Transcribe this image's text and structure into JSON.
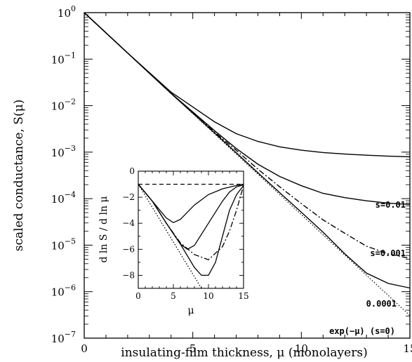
{
  "chart_data": [
    {
      "type": "line",
      "title": "",
      "xlabel": "insulating-film thickness, μ (monolayers)",
      "ylabel": "scaled conductance, S(μ)",
      "xlim": [
        0,
        15
      ],
      "ylim": [
        1e-07,
        1
      ],
      "yscale": "log",
      "grid": false,
      "x_ticks": [
        "0",
        "5",
        "10",
        "15"
      ],
      "y_ticks": [
        {
          "base": "10",
          "exp": "0"
        },
        {
          "base": "10",
          "exp": "-1"
        },
        {
          "base": "10",
          "exp": "-2"
        },
        {
          "base": "10",
          "exp": "-3"
        },
        {
          "base": "10",
          "exp": "-4"
        },
        {
          "base": "10",
          "exp": "-5"
        },
        {
          "base": "10",
          "exp": "-6"
        },
        {
          "base": "10",
          "exp": "-7"
        }
      ],
      "series": [
        {
          "name": "s=0.01",
          "style": "solid",
          "x": [
            0,
            2,
            4,
            6,
            7,
            8,
            9,
            10,
            11,
            12,
            13,
            14,
            15
          ],
          "y": [
            1,
            0.135,
            0.0195,
            0.0045,
            0.0025,
            0.0017,
            0.0013,
            0.0011,
            0.00098,
            0.00091,
            0.00086,
            0.00082,
            0.00079
          ]
        },
        {
          "name": "s=0.001",
          "style": "solid",
          "x": [
            0,
            2,
            4,
            6,
            7,
            8,
            9,
            10,
            11,
            12,
            13,
            14,
            15
          ],
          "y": [
            1,
            0.135,
            0.0185,
            0.0029,
            0.0012,
            0.00055,
            0.0003,
            0.00019,
            0.00013,
            0.000105,
            9e-05,
            8e-05,
            7.5e-05
          ]
        },
        {
          "series_style_note": "dash-dot curve unlabeled",
          "style": "dashdot",
          "x": [
            0,
            2,
            4,
            6,
            7,
            8,
            9,
            10,
            11,
            12,
            13,
            14,
            15
          ],
          "y": [
            1,
            0.135,
            0.0185,
            0.0027,
            0.0011,
            0.00043,
            0.00018,
            7.8e-05,
            3.5e-05,
            1.8e-05,
            9.5e-06,
            6.5e-06,
            5.2e-06
          ]
        },
        {
          "name": "0.0001",
          "style": "solid",
          "x": [
            0,
            2,
            4,
            6,
            7,
            8,
            9,
            10,
            11,
            12,
            13,
            14,
            15
          ],
          "y": [
            1,
            0.135,
            0.0183,
            0.0026,
            0.00097,
            0.00036,
            0.000135,
            5.1e-05,
            1.9e-05,
            6.5e-06,
            2.5e-06,
            1.5e-06,
            1.2e-06
          ]
        },
        {
          "name": "exp(−μ) (s=0)",
          "style": "dotted",
          "x": [
            0,
            5,
            10,
            15
          ],
          "y": [
            1,
            0.006738,
            4.54e-05,
            3.06e-07
          ]
        }
      ]
    },
    {
      "type": "line",
      "title": "",
      "xlabel": "μ",
      "ylabel": "d ln S / d ln μ",
      "xlim": [
        0,
        15
      ],
      "ylim": [
        -9,
        0
      ],
      "grid": false,
      "x_ticks": [
        "0",
        "5",
        "10",
        "15"
      ],
      "y_ticks": [
        "0",
        "−2",
        "−4",
        "−6",
        "−8"
      ],
      "series": [
        {
          "style": "dashed",
          "x": [
            0,
            15
          ],
          "y": [
            -1,
            -1
          ]
        },
        {
          "style": "solid",
          "x": [
            0,
            2,
            4,
            5,
            6,
            8,
            10,
            12,
            14,
            15
          ],
          "y": [
            -1,
            -2.3,
            -3.6,
            -3.95,
            -3.7,
            -2.6,
            -1.8,
            -1.35,
            -1.1,
            -1.05
          ]
        },
        {
          "style": "solid",
          "x": [
            0,
            2,
            4,
            6,
            7,
            8,
            10,
            12,
            13,
            14,
            15
          ],
          "y": [
            -1,
            -2.3,
            -4.0,
            -5.6,
            -6.0,
            -5.7,
            -4.0,
            -2.3,
            -1.6,
            -1.2,
            -1.05
          ]
        },
        {
          "style": "dashdot",
          "x": [
            0,
            2,
            4,
            6,
            8,
            10,
            12,
            13,
            14,
            15
          ],
          "y": [
            -1,
            -2.3,
            -4.0,
            -5.5,
            -6.4,
            -6.8,
            -5.8,
            -4.6,
            -3.0,
            -1.1
          ]
        },
        {
          "style": "solid",
          "x": [
            0,
            2,
            4,
            6,
            8,
            9,
            10,
            11,
            12,
            13,
            14,
            15
          ],
          "y": [
            -1,
            -2.3,
            -4.0,
            -5.6,
            -7.4,
            -8.0,
            -8.0,
            -7.0,
            -5.0,
            -3.0,
            -1.8,
            -1.1
          ]
        },
        {
          "style": "dotted",
          "x": [
            0,
            9
          ],
          "y": [
            -1,
            -9
          ]
        }
      ]
    }
  ]
}
